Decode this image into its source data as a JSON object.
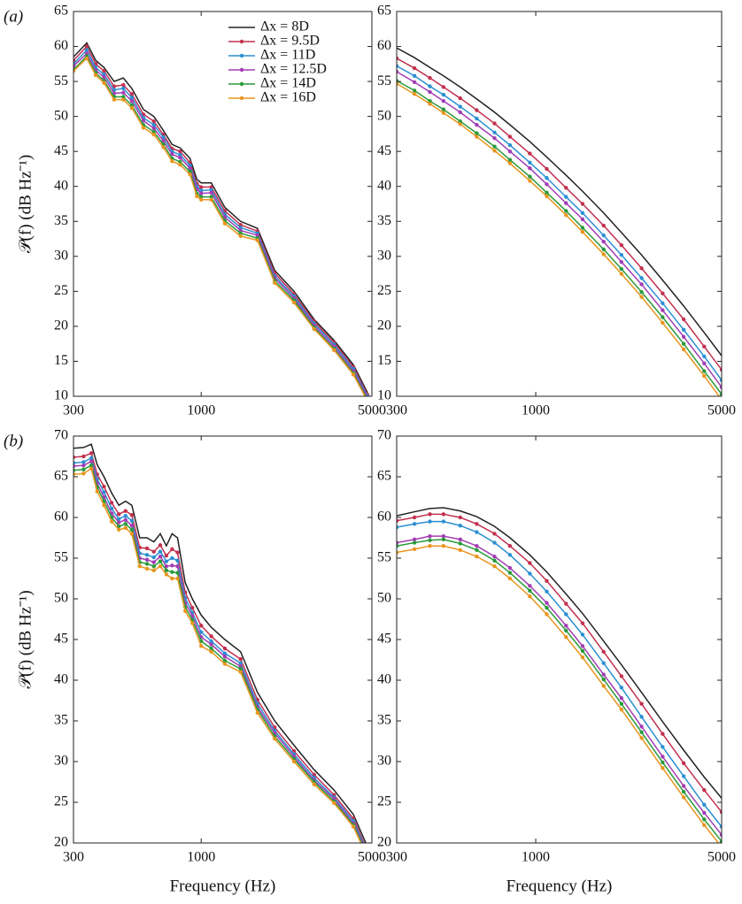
{
  "chart_data": [
    {
      "type": "line",
      "panel_label": "(a)",
      "ylabel": "𝒫(f) (dB Hz⁻¹)",
      "xscale": "log",
      "legend": "upper right",
      "xlim": [
        300,
        5000
      ],
      "xticks": [
        300,
        1000,
        5000
      ],
      "ylim": [
        10,
        65
      ],
      "yticks": [
        10,
        15,
        20,
        25,
        30,
        35,
        40,
        45,
        50,
        55,
        60,
        65
      ],
      "x": [
        300,
        340,
        370,
        400,
        440,
        480,
        520,
        580,
        640,
        700,
        760,
        820,
        900,
        960,
        1000,
        1100,
        1250,
        1450,
        1700,
        2000,
        2400,
        2900,
        3500,
        4200,
        4800
      ],
      "series": [
        {
          "name": "Δx = 8D",
          "color": "#222222",
          "marker": "none",
          "values": [
            58.5,
            60.5,
            58,
            57,
            55,
            55.5,
            54,
            51,
            50,
            48,
            46,
            45.5,
            44,
            41,
            40.5,
            40.5,
            37,
            35,
            34,
            28,
            25,
            21,
            18,
            14.5,
            10.5
          ]
        },
        {
          "name": "Δx = 9.5D",
          "color": "#c2304e",
          "marker": "circle",
          "values": [
            58,
            60,
            57.5,
            56.5,
            54.3,
            54.5,
            53.2,
            50.3,
            49.3,
            47.4,
            45.4,
            45,
            43.4,
            40.4,
            39.9,
            39.9,
            36.5,
            34.5,
            33.6,
            27.6,
            24.6,
            20.7,
            17.7,
            14.2,
            10.2
          ]
        },
        {
          "name": "Δx = 11D",
          "color": "#2b8fd2",
          "marker": "circle",
          "values": [
            57.5,
            59.5,
            57,
            56,
            53.8,
            54,
            52.7,
            49.8,
            48.8,
            47,
            45,
            44.5,
            43,
            40,
            39.4,
            39.5,
            36,
            34.1,
            33.3,
            27.2,
            24.3,
            20.4,
            17.4,
            13.9,
            10
          ]
        },
        {
          "name": "Δx = 12.5D",
          "color": "#a23db4",
          "marker": "circle",
          "values": [
            57.2,
            59,
            56.6,
            55.6,
            53.3,
            53.4,
            52.2,
            49.4,
            48.3,
            46.5,
            44.6,
            44.1,
            42.6,
            39.6,
            39,
            39.1,
            35.6,
            33.7,
            33,
            26.9,
            24,
            20.1,
            17.1,
            13.6,
            9.8
          ]
        },
        {
          "name": "Δx = 14D",
          "color": "#2a9a3c",
          "marker": "circle",
          "values": [
            56.7,
            58.6,
            56.2,
            55.1,
            52.8,
            52.8,
            51.6,
            48.8,
            47.8,
            46,
            44,
            43.5,
            42.1,
            39,
            38.5,
            38.5,
            35.1,
            33.3,
            32.6,
            26.5,
            23.7,
            19.8,
            16.8,
            13.3,
            9.5
          ]
        },
        {
          "name": "Δx = 16D",
          "color": "#e8951e",
          "marker": "circle",
          "values": [
            56.5,
            58.3,
            55.9,
            54.8,
            52.4,
            52.4,
            51.2,
            48.4,
            47.4,
            45.6,
            43.6,
            43.1,
            41.7,
            38.6,
            38.1,
            38.1,
            34.7,
            32.9,
            32.3,
            26.2,
            23.4,
            19.6,
            16.6,
            13.1,
            9.3
          ]
        }
      ]
    },
    {
      "type": "line",
      "xscale": "log",
      "xlim": [
        300,
        5000
      ],
      "xticks": [
        300,
        1000,
        5000
      ],
      "ylim": [
        10,
        65
      ],
      "yticks": [
        10,
        15,
        20,
        25,
        30,
        35,
        40,
        45,
        50,
        55,
        60,
        65
      ],
      "x": [
        300,
        350,
        400,
        450,
        520,
        600,
        700,
        800,
        950,
        1100,
        1300,
        1500,
        1800,
        2100,
        2500,
        3000,
        3600,
        4300,
        5000
      ],
      "series": [
        {
          "color": "#222222",
          "marker": "none",
          "values": [
            59.8,
            58.4,
            57.0,
            55.8,
            54.2,
            52.5,
            50.6,
            48.8,
            46.4,
            44.2,
            41.6,
            39.3,
            36.2,
            33.4,
            30.2,
            26.6,
            22.9,
            19.1,
            15.8
          ]
        },
        {
          "color": "#c2304e",
          "marker": "circle",
          "values": [
            58.3,
            56.9,
            55.5,
            54.2,
            52.6,
            50.9,
            49.0,
            47.1,
            44.7,
            42.5,
            39.8,
            37.5,
            34.4,
            31.6,
            28.3,
            24.7,
            21.0,
            17.1,
            13.8
          ]
        },
        {
          "color": "#2b8fd2",
          "marker": "circle",
          "values": [
            57.2,
            55.8,
            54.3,
            53.1,
            51.4,
            49.7,
            47.7,
            45.9,
            43.4,
            41.2,
            38.5,
            36.2,
            33.0,
            30.2,
            26.9,
            23.3,
            19.5,
            15.7,
            12.3
          ]
        },
        {
          "color": "#a23db4",
          "marker": "circle",
          "values": [
            56.4,
            54.9,
            53.5,
            52.2,
            50.6,
            48.8,
            46.9,
            45.0,
            42.6,
            40.3,
            37.6,
            35.3,
            32.1,
            29.2,
            26.0,
            22.3,
            18.5,
            14.7,
            11.3
          ]
        },
        {
          "color": "#2a9a3c",
          "marker": "circle",
          "values": [
            55.1,
            53.7,
            52.2,
            51.0,
            49.3,
            47.6,
            45.7,
            43.8,
            41.4,
            39.1,
            36.5,
            34.1,
            31.0,
            28.2,
            24.9,
            21.3,
            17.5,
            13.6,
            10.3
          ]
        },
        {
          "color": "#e8951e",
          "marker": "circle",
          "values": [
            54.7,
            53.2,
            51.8,
            50.5,
            48.9,
            47.1,
            45.1,
            43.3,
            40.8,
            38.6,
            35.9,
            33.5,
            30.3,
            27.5,
            24.2,
            20.5,
            16.7,
            12.9,
            9.5
          ]
        }
      ]
    },
    {
      "type": "line",
      "panel_label": "(b)",
      "ylabel": "𝒫(f) (dB Hz⁻¹)",
      "xlabel": "Frequency (Hz)",
      "xscale": "log",
      "xlim": [
        300,
        5000
      ],
      "xticks": [
        300,
        1000,
        5000
      ],
      "ylim": [
        20,
        70
      ],
      "yticks": [
        20,
        25,
        30,
        35,
        40,
        45,
        50,
        55,
        60,
        65,
        70
      ],
      "x": [
        300,
        330,
        355,
        375,
        400,
        430,
        460,
        490,
        520,
        560,
        600,
        640,
        680,
        720,
        760,
        800,
        860,
        920,
        1000,
        1100,
        1250,
        1450,
        1700,
        2000,
        2400,
        2900,
        3500,
        4200,
        4800
      ],
      "series": [
        {
          "color": "#222222",
          "marker": "none",
          "values": [
            68.5,
            68.6,
            69,
            66.5,
            65,
            63,
            61.5,
            62,
            61.5,
            57.5,
            57.5,
            57,
            58,
            56.5,
            58,
            57.5,
            52,
            50,
            48,
            46.5,
            45,
            43.5,
            38.5,
            35,
            32,
            29,
            26.5,
            23.5,
            19.5
          ]
        },
        {
          "color": "#c2304e",
          "marker": "circle",
          "values": [
            67.4,
            67.5,
            67.9,
            65.3,
            63.8,
            61.8,
            60.4,
            60.8,
            60.3,
            56.3,
            56.2,
            55.8,
            56.6,
            55.3,
            56.1,
            55.7,
            50.8,
            48.9,
            46.7,
            45.4,
            43.9,
            42.6,
            37.6,
            34.2,
            31.3,
            28.4,
            25.9,
            23,
            19
          ]
        },
        {
          "color": "#2b8fd2",
          "marker": "circle",
          "values": [
            66.7,
            66.8,
            67.3,
            64.7,
            63.1,
            61.1,
            59.8,
            60.2,
            59.6,
            55.6,
            55.4,
            55.1,
            55.8,
            54.6,
            55,
            54.7,
            50.1,
            48.3,
            45.9,
            44.8,
            43.3,
            42.1,
            37.1,
            33.8,
            30.9,
            28,
            25.6,
            22.7,
            18.8
          ]
        },
        {
          "color": "#a23db4",
          "marker": "circle",
          "values": [
            66.3,
            66.4,
            66.9,
            64.2,
            62.5,
            60.5,
            59.4,
            59.7,
            59,
            55,
            54.8,
            54.5,
            55.2,
            54,
            54.1,
            54,
            49.5,
            47.9,
            45.3,
            44.4,
            42.9,
            41.7,
            36.7,
            33.5,
            30.6,
            27.7,
            25.4,
            22.4,
            18.6
          ]
        },
        {
          "color": "#2a9a3c",
          "marker": "circle",
          "values": [
            65.8,
            65.9,
            66.4,
            63.7,
            62,
            60,
            58.9,
            59.2,
            58.5,
            54.5,
            54.3,
            54,
            54.6,
            53.5,
            53.3,
            53.2,
            49,
            47.4,
            44.8,
            43.9,
            42.4,
            41.4,
            36.4,
            33.1,
            30.3,
            27.5,
            25.1,
            22.2,
            18.4
          ]
        },
        {
          "color": "#e8951e",
          "marker": "circle",
          "values": [
            65.3,
            65.4,
            66,
            63.2,
            61.5,
            59.5,
            58.5,
            58.7,
            58,
            54,
            53.7,
            53.5,
            54,
            53,
            52.5,
            52.5,
            48.5,
            47,
            44.2,
            43.5,
            42,
            41,
            36,
            32.8,
            30,
            27.2,
            24.9,
            22,
            18.2
          ]
        }
      ]
    },
    {
      "type": "line",
      "xlabel": "Frequency (Hz)",
      "xscale": "log",
      "xlim": [
        300,
        5000
      ],
      "xticks": [
        300,
        1000,
        5000
      ],
      "ylim": [
        20,
        70
      ],
      "yticks": [
        20,
        25,
        30,
        35,
        40,
        45,
        50,
        55,
        60,
        65,
        70
      ],
      "x": [
        300,
        350,
        400,
        450,
        520,
        600,
        700,
        800,
        950,
        1100,
        1300,
        1500,
        1800,
        2100,
        2500,
        3000,
        3600,
        4300,
        5000
      ],
      "series": [
        {
          "color": "#222222",
          "marker": "none",
          "values": [
            60.2,
            60.7,
            61.1,
            61.2,
            60.8,
            60.1,
            58.9,
            57.5,
            55.4,
            53.3,
            50.6,
            48.2,
            44.8,
            41.9,
            38.5,
            34.9,
            31.4,
            28.1,
            25.5
          ]
        },
        {
          "color": "#c2304e",
          "marker": "circle",
          "values": [
            59.6,
            60.0,
            60.4,
            60.4,
            60.0,
            59.2,
            58.0,
            56.5,
            54.4,
            52.2,
            49.4,
            47.0,
            43.5,
            40.5,
            37.1,
            33.4,
            29.8,
            26.5,
            23.8
          ]
        },
        {
          "color": "#2b8fd2",
          "marker": "circle",
          "values": [
            58.8,
            59.2,
            59.5,
            59.5,
            59.0,
            58.2,
            56.9,
            55.4,
            53.1,
            50.9,
            48.1,
            45.6,
            42.1,
            39.1,
            35.5,
            31.8,
            28.2,
            24.7,
            22.0
          ]
        },
        {
          "color": "#a23db4",
          "marker": "circle",
          "values": [
            56.9,
            57.3,
            57.7,
            57.7,
            57.3,
            56.5,
            55.2,
            53.8,
            51.6,
            49.5,
            46.7,
            44.2,
            40.7,
            37.8,
            34.3,
            30.6,
            27.0,
            23.7,
            21.0
          ]
        },
        {
          "color": "#2a9a3c",
          "marker": "circle",
          "values": [
            56.5,
            56.9,
            57.2,
            57.3,
            56.8,
            56.0,
            54.7,
            53.2,
            51.0,
            48.9,
            46.1,
            43.6,
            40.1,
            37.1,
            33.6,
            29.9,
            26.3,
            22.9,
            20.2
          ]
        },
        {
          "color": "#e8951e",
          "marker": "circle",
          "values": [
            55.7,
            56.1,
            56.5,
            56.5,
            56.0,
            55.2,
            54.0,
            52.5,
            50.3,
            48.1,
            45.3,
            42.8,
            39.3,
            36.4,
            32.9,
            29.2,
            25.6,
            22.2,
            19.5
          ]
        }
      ]
    }
  ]
}
